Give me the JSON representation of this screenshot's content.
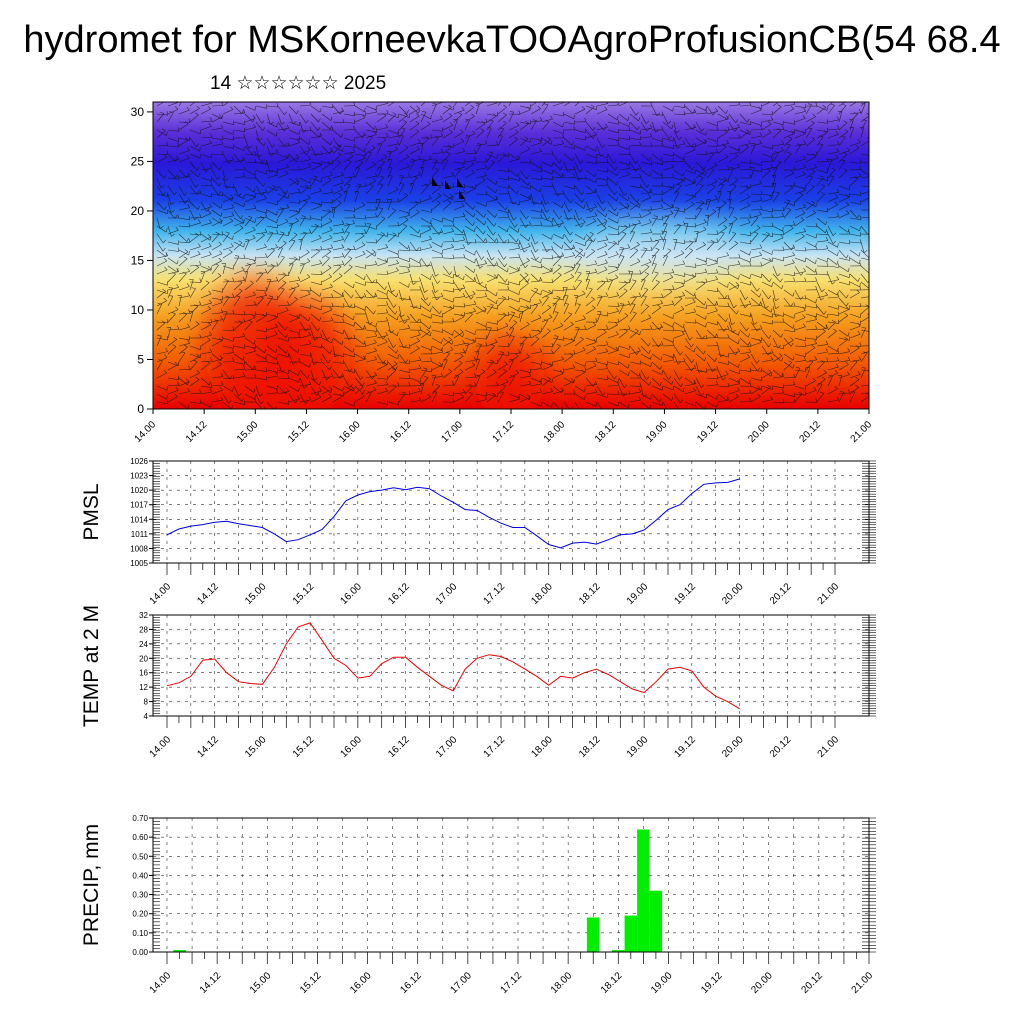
{
  "page": {
    "title": "hydromet for MSKorneevkaTOOAgroProfusionCB(54 68.4",
    "subtitle": "14 ☆☆☆☆☆☆ 2025"
  },
  "colors": {
    "pmsl": "#0000ee",
    "temp": "#ee0000",
    "precip": "#00ee00"
  },
  "chart_data": [
    {
      "type": "heatmap",
      "title": "",
      "ylim": [
        0,
        31
      ],
      "yticks": [
        0,
        5,
        10,
        15,
        20,
        25,
        30
      ],
      "xlim": [
        0,
        168
      ],
      "x_tick_labels": [
        "14.00",
        "14.12",
        "15.00",
        "15.12",
        "16.00",
        "16.12",
        "17.00",
        "17.12",
        "18.00",
        "18.12",
        "19.00",
        "19.12",
        "20.00",
        "20.12",
        "21.00"
      ],
      "overlay": "wind barbs",
      "colormap": "red (low levels) to yellow, light blue, blue, violet (upper levels)"
    },
    {
      "type": "line",
      "ylabel": "PMSL",
      "ylim": [
        1005,
        1026
      ],
      "yticks": [
        1005,
        1008,
        1011,
        1014,
        1017,
        1020,
        1023,
        1026
      ],
      "x_tick_labels": [
        "14.00",
        "14.12",
        "15.00",
        "15.12",
        "16.00",
        "16.12",
        "17.00",
        "17.12",
        "18.00",
        "18.12",
        "19.00",
        "19.12",
        "20.00",
        "20.12",
        "21.00"
      ],
      "x": [
        0,
        3,
        6,
        9,
        12,
        15,
        18,
        21,
        24,
        27,
        30,
        33,
        36,
        39,
        42,
        45,
        48,
        51,
        54,
        57,
        60,
        63,
        66,
        69,
        72,
        75,
        78,
        81,
        84,
        87,
        90,
        93,
        96,
        99,
        102,
        105,
        108,
        111,
        114,
        117,
        120,
        123,
        126,
        129,
        132,
        135,
        138,
        141,
        144
      ],
      "series": [
        {
          "values": [
            1010.8,
            1012.0,
            1012.6,
            1012.9,
            1013.4,
            1013.6,
            1013.1,
            1012.7,
            1012.3,
            1011.0,
            1009.4,
            1009.8,
            1010.8,
            1011.9,
            1014.6,
            1017.8,
            1019.0,
            1019.7,
            1020.0,
            1020.5,
            1020.1,
            1020.6,
            1020.3,
            1018.8,
            1017.5,
            1016.0,
            1015.8,
            1014.4,
            1013.2,
            1012.3,
            1012.3,
            1010.6,
            1008.8,
            1008.1,
            1009.1,
            1009.3,
            1008.9,
            1009.8,
            1010.8,
            1011.0,
            1011.8,
            1013.8,
            1016.0,
            1017.0,
            1019.3,
            1021.2,
            1021.5,
            1021.6,
            1022.3
          ]
        }
      ]
    },
    {
      "type": "line",
      "ylabel": "TEMP at 2 M",
      "ylim": [
        4,
        32
      ],
      "yticks": [
        4,
        8,
        12,
        16,
        20,
        24,
        28,
        32
      ],
      "x_tick_labels": [
        "14.00",
        "14.12",
        "15.00",
        "15.12",
        "16.00",
        "16.12",
        "17.00",
        "17.12",
        "18.00",
        "18.12",
        "19.00",
        "19.12",
        "20.00",
        "20.12",
        "21.00"
      ],
      "x": [
        0,
        3,
        6,
        9,
        12,
        15,
        18,
        21,
        24,
        27,
        30,
        33,
        36,
        39,
        42,
        45,
        48,
        51,
        54,
        57,
        60,
        63,
        66,
        69,
        72,
        75,
        78,
        81,
        84,
        87,
        90,
        93,
        96,
        99,
        102,
        105,
        108,
        111,
        114,
        117,
        120,
        123,
        126,
        129,
        132,
        135,
        138,
        141,
        144
      ],
      "series": [
        {
          "values": [
            12.4,
            13.2,
            15.0,
            19.5,
            19.8,
            16.0,
            13.5,
            13.0,
            12.8,
            17.5,
            24.0,
            28.7,
            29.8,
            25.0,
            20.0,
            18.0,
            14.5,
            15.0,
            18.5,
            20.3,
            20.3,
            17.5,
            15.0,
            12.5,
            11.0,
            17.0,
            20.0,
            21.0,
            20.5,
            19.0,
            17.0,
            15.0,
            12.5,
            15.0,
            14.5,
            16.0,
            17.0,
            15.5,
            13.5,
            11.5,
            10.5,
            13.5,
            17.0,
            17.5,
            16.5,
            12.0,
            9.5,
            8.0,
            6.0
          ]
        }
      ]
    },
    {
      "type": "bar",
      "ylabel": "PRECIP, mm",
      "ylim": [
        0,
        0.7
      ],
      "yticks": [
        "0.00",
        "0.10",
        "0.20",
        "0.30",
        "0.40",
        "0.50",
        "0.60",
        "0.70"
      ],
      "x_tick_labels": [
        "14.00",
        "14.12",
        "15.00",
        "15.12",
        "16.00",
        "16.12",
        "17.00",
        "17.12",
        "18.00",
        "18.12",
        "19.00",
        "19.12",
        "20.00",
        "20.12",
        "21.00"
      ],
      "x": [
        3,
        102,
        108,
        111,
        114,
        117
      ],
      "values": [
        0.01,
        0.18,
        0.01,
        0.19,
        0.64,
        0.32
      ]
    }
  ]
}
